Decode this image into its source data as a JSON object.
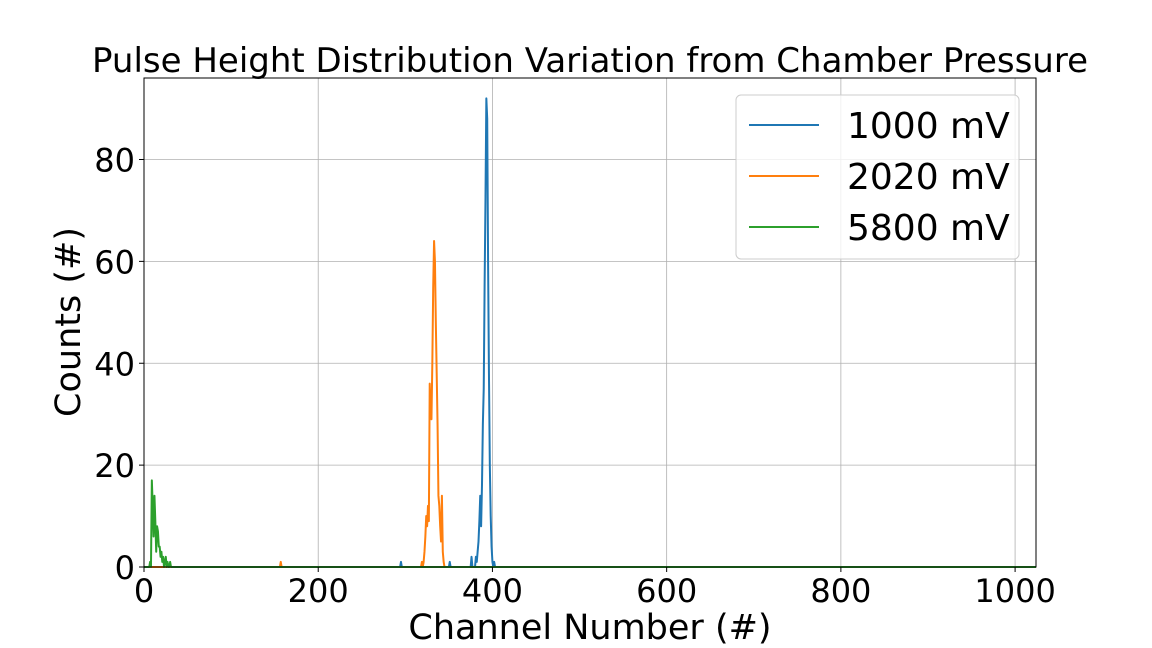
{
  "chart_data": {
    "type": "line",
    "title": "Pulse Height Distribution Variation from Chamber Pressure",
    "xlabel": "Channel Number (#)",
    "ylabel": "Counts (#)",
    "xlim": [
      0,
      1024
    ],
    "ylim": [
      0,
      96
    ],
    "xticks": [
      0,
      200,
      400,
      600,
      800,
      1000
    ],
    "yticks": [
      0,
      20,
      40,
      60,
      80
    ],
    "grid": true,
    "legend_position": "top-right",
    "series": [
      {
        "name": "1000 mV",
        "color": "#1f77b4",
        "x": [
          0,
          294,
          295,
          296,
          297,
          350,
          351,
          352,
          353,
          375,
          376,
          377,
          378,
          380,
          381,
          382,
          383,
          384,
          385,
          386,
          387,
          388,
          389,
          390,
          391,
          392,
          393,
          394,
          395,
          396,
          397,
          398,
          399,
          400,
          401,
          402,
          403,
          404,
          405,
          1024
        ],
        "y": [
          0,
          0,
          1,
          0,
          0,
          0,
          1,
          0,
          0,
          0,
          2,
          0,
          0,
          0,
          2,
          1,
          3,
          5,
          9,
          14,
          8,
          16,
          28,
          35,
          55,
          72,
          92,
          88,
          60,
          38,
          20,
          10,
          4,
          1,
          0,
          1,
          0,
          0,
          0,
          0
        ]
      },
      {
        "name": "2020 mV",
        "color": "#ff7f0e",
        "x": [
          0,
          156,
          157,
          158,
          318,
          319,
          320,
          321,
          322,
          323,
          324,
          325,
          326,
          327,
          328,
          329,
          330,
          331,
          332,
          333,
          334,
          335,
          336,
          337,
          338,
          339,
          340,
          341,
          342,
          343,
          344,
          345,
          346,
          347,
          348,
          349,
          1024
        ],
        "y": [
          0,
          0,
          1,
          0,
          0,
          1,
          0,
          1,
          3,
          6,
          10,
          8,
          12,
          9,
          36,
          30,
          29,
          40,
          55,
          64,
          60,
          48,
          38,
          28,
          14,
          12,
          8,
          5,
          14,
          3,
          1,
          0,
          0,
          0,
          0,
          0,
          0
        ]
      },
      {
        "name": "5800 mV",
        "color": "#2ca02c",
        "x": [
          0,
          1,
          2,
          3,
          4,
          5,
          6,
          7,
          8,
          9,
          10,
          11,
          12,
          13,
          14,
          15,
          16,
          17,
          18,
          19,
          20,
          21,
          22,
          23,
          24,
          25,
          26,
          27,
          28,
          29,
          30,
          31,
          1024
        ],
        "y": [
          0,
          0,
          0,
          0,
          0,
          0,
          0,
          1,
          0,
          17,
          12,
          6,
          14,
          9,
          3,
          8,
          7,
          4,
          4,
          2,
          3,
          1,
          2,
          0,
          1,
          2,
          0,
          1,
          0,
          0,
          1,
          0,
          0
        ]
      }
    ]
  }
}
